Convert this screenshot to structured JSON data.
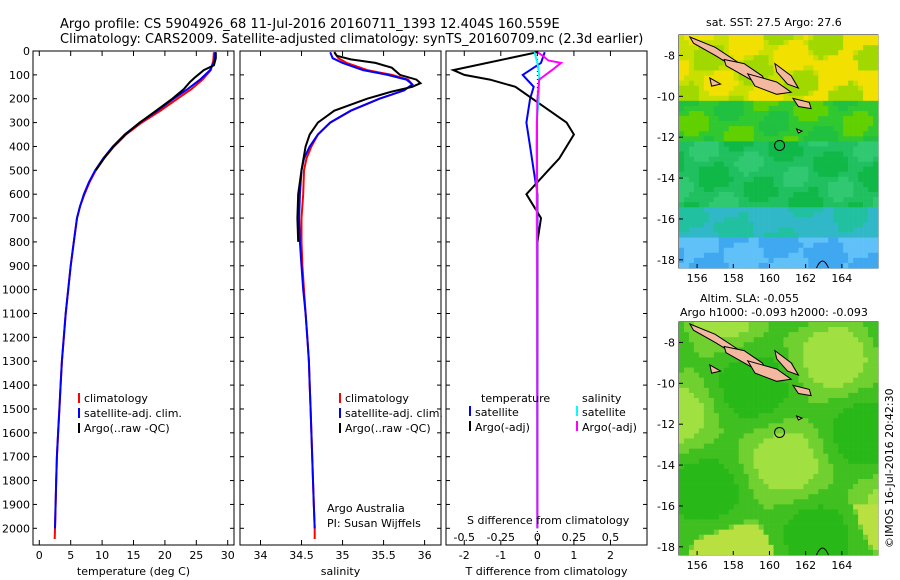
{
  "header": {
    "line1": "Argo profile: CS 5904926_68 11-Jul-2016 20160711_1393 12.404S 160.559E",
    "line2": "Climatology: CARS2009. Satellite-adjusted climatology: synTS_20160709.nc (2.3d earlier)"
  },
  "colors": {
    "climatology": "#ff0000",
    "satellite": "#0000ff",
    "argo": "#000000",
    "sal_satellite": "#00ffff",
    "sal_argo": "#ff00ff"
  },
  "annotations": {
    "argo_australia": "Argo Australia",
    "pi": "PI: Susan Wijffels",
    "diff_title": "S difference from climatology",
    "imos": "©IMOS 16-Jul-2016 20:42:30"
  },
  "map_sst": {
    "title": "sat. SST: 27.5  Argo: 27.6",
    "xticks": [
      "156",
      "158",
      "160",
      "162",
      "164"
    ],
    "yticks": [
      "-8",
      "-10",
      "-12",
      "-14",
      "-16",
      "-18"
    ]
  },
  "map_sla": {
    "title1": "Altim. SLA: -0.055",
    "title2": "Argo h1000: -0.093 h2000: -0.093",
    "xticks": [
      "156",
      "158",
      "160",
      "162",
      "164"
    ],
    "yticks": [
      "-8",
      "-10",
      "-12",
      "-14",
      "-16",
      "-18"
    ]
  },
  "chart_data": [
    {
      "type": "line",
      "xlabel": "temperature (deg C)",
      "ylabel": "",
      "xlim": [
        -1,
        31
      ],
      "ylim": [
        2070,
        0
      ],
      "xticks": [
        "0",
        "5",
        "10",
        "15",
        "20",
        "25",
        "30"
      ],
      "yticks": [
        "0",
        "100",
        "200",
        "300",
        "400",
        "500",
        "600",
        "700",
        "800",
        "900",
        "1000",
        "1100",
        "1200",
        "1300",
        "1400",
        "1500",
        "1600",
        "1700",
        "1800",
        "1900",
        "2000"
      ],
      "legend": [
        "climatology",
        "satellite-adj. clim.",
        "Argo(..raw -QC)"
      ],
      "series": [
        {
          "name": "climatology",
          "color": "#ff0000",
          "points": [
            [
              27.8,
              5
            ],
            [
              27.7,
              40
            ],
            [
              27.3,
              80
            ],
            [
              26.0,
              120
            ],
            [
              24.2,
              160
            ],
            [
              22.0,
              200
            ],
            [
              19.3,
              250
            ],
            [
              16.3,
              300
            ],
            [
              13.8,
              350
            ],
            [
              11.9,
              400
            ],
            [
              10.3,
              450
            ],
            [
              9.0,
              500
            ],
            [
              8.0,
              550
            ],
            [
              7.2,
              600
            ],
            [
              6.5,
              650
            ],
            [
              6.0,
              700
            ],
            [
              5.5,
              800
            ],
            [
              5.0,
              900
            ],
            [
              4.6,
              1000
            ],
            [
              4.2,
              1100
            ],
            [
              3.9,
              1200
            ],
            [
              3.6,
              1300
            ],
            [
              3.4,
              1400
            ],
            [
              3.2,
              1500
            ],
            [
              3.0,
              1600
            ],
            [
              2.8,
              1700
            ],
            [
              2.7,
              1800
            ],
            [
              2.6,
              1900
            ],
            [
              2.5,
              2000
            ],
            [
              2.45,
              2045
            ]
          ]
        },
        {
          "name": "satellite-adj. clim.",
          "color": "#0000ff",
          "points": [
            [
              28.0,
              5
            ],
            [
              27.9,
              40
            ],
            [
              27.2,
              80
            ],
            [
              25.6,
              120
            ],
            [
              23.6,
              160
            ],
            [
              21.4,
              200
            ],
            [
              18.8,
              250
            ],
            [
              16.0,
              300
            ],
            [
              13.6,
              350
            ],
            [
              11.7,
              400
            ],
            [
              10.2,
              450
            ],
            [
              8.9,
              500
            ],
            [
              7.9,
              550
            ],
            [
              7.1,
              600
            ],
            [
              6.5,
              650
            ],
            [
              6.0,
              700
            ],
            [
              5.5,
              800
            ],
            [
              5.0,
              900
            ],
            [
              4.6,
              1000
            ],
            [
              4.2,
              1100
            ],
            [
              3.9,
              1200
            ],
            [
              3.6,
              1300
            ],
            [
              3.4,
              1400
            ],
            [
              3.2,
              1500
            ],
            [
              3.0,
              1600
            ],
            [
              2.8,
              1700
            ],
            [
              2.7,
              1800
            ],
            [
              2.6,
              1900
            ],
            [
              2.5,
              2000
            ]
          ]
        },
        {
          "name": "Argo(..raw -QC)",
          "color": "#000000",
          "points": [
            [
              28.1,
              5
            ],
            [
              28.1,
              30
            ],
            [
              27.8,
              60
            ],
            [
              26.2,
              80
            ],
            [
              25.5,
              95
            ],
            [
              24.8,
              110
            ],
            [
              24.0,
              130
            ],
            [
              23.0,
              160
            ],
            [
              21.2,
              200
            ],
            [
              18.6,
              250
            ],
            [
              16.0,
              300
            ],
            [
              13.7,
              350
            ],
            [
              11.8,
              400
            ],
            [
              10.3,
              450
            ],
            [
              9.0,
              500
            ]
          ]
        }
      ]
    },
    {
      "type": "line",
      "xlabel": "salinity",
      "ylabel": "",
      "xlim": [
        33.75,
        36.2
      ],
      "ylim": [
        2070,
        0
      ],
      "xticks": [
        "34",
        "34.5",
        "35",
        "35.5",
        "36"
      ],
      "legend": [
        "climatology",
        "satellite-adj. clim.",
        "Argo(..raw -QC)"
      ],
      "series": [
        {
          "name": "climatology",
          "color": "#ff0000",
          "points": [
            [
              34.9,
              5
            ],
            [
              34.95,
              30
            ],
            [
              35.05,
              50
            ],
            [
              35.3,
              80
            ],
            [
              35.6,
              100
            ],
            [
              35.8,
              120
            ],
            [
              35.85,
              140
            ],
            [
              35.75,
              165
            ],
            [
              35.45,
              200
            ],
            [
              35.1,
              250
            ],
            [
              34.85,
              300
            ],
            [
              34.7,
              350
            ],
            [
              34.62,
              400
            ],
            [
              34.56,
              450
            ],
            [
              34.53,
              500
            ],
            [
              34.52,
              600
            ],
            [
              34.5,
              700
            ],
            [
              34.5,
              800
            ],
            [
              34.51,
              900
            ],
            [
              34.53,
              1000
            ],
            [
              34.55,
              1100
            ],
            [
              34.57,
              1200
            ],
            [
              34.59,
              1300
            ],
            [
              34.6,
              1400
            ],
            [
              34.61,
              1500
            ],
            [
              34.62,
              1600
            ],
            [
              34.63,
              1700
            ],
            [
              34.64,
              1800
            ],
            [
              34.65,
              1900
            ],
            [
              34.66,
              2000
            ],
            [
              34.66,
              2045
            ]
          ]
        },
        {
          "name": "satellite-adj. clim.",
          "color": "#0000ff",
          "points": [
            [
              34.85,
              5
            ],
            [
              34.88,
              30
            ],
            [
              35.0,
              50
            ],
            [
              35.25,
              80
            ],
            [
              35.55,
              100
            ],
            [
              35.78,
              120
            ],
            [
              35.85,
              140
            ],
            [
              35.75,
              165
            ],
            [
              35.45,
              200
            ],
            [
              35.1,
              250
            ],
            [
              34.85,
              300
            ],
            [
              34.7,
              350
            ],
            [
              34.6,
              400
            ],
            [
              34.53,
              450
            ],
            [
              34.5,
              500
            ],
            [
              34.48,
              600
            ],
            [
              34.47,
              700
            ],
            [
              34.48,
              800
            ],
            [
              34.5,
              900
            ],
            [
              34.52,
              1000
            ],
            [
              34.55,
              1100
            ],
            [
              34.57,
              1200
            ],
            [
              34.59,
              1300
            ],
            [
              34.6,
              1400
            ],
            [
              34.61,
              1500
            ],
            [
              34.62,
              1600
            ],
            [
              34.63,
              1700
            ],
            [
              34.64,
              1800
            ],
            [
              34.65,
              1900
            ],
            [
              34.66,
              2000
            ]
          ]
        },
        {
          "name": "Argo(..raw -QC)",
          "color": "#000000",
          "points": [
            [
              34.9,
              5
            ],
            [
              34.93,
              20
            ],
            [
              35.1,
              35
            ],
            [
              35.4,
              50
            ],
            [
              35.6,
              70
            ],
            [
              35.7,
              100
            ],
            [
              35.9,
              120
            ],
            [
              35.95,
              135
            ],
            [
              35.85,
              150
            ],
            [
              35.6,
              170
            ],
            [
              35.3,
              200
            ],
            [
              34.9,
              250
            ],
            [
              34.7,
              300
            ],
            [
              34.6,
              350
            ],
            [
              34.55,
              400
            ],
            [
              34.5,
              500
            ],
            [
              34.46,
              600
            ],
            [
              34.45,
              700
            ],
            [
              34.46,
              800
            ]
          ]
        }
      ]
    },
    {
      "type": "line",
      "xlabel": "T difference from climatology",
      "ylabel": "",
      "xlim": [
        -2.5,
        3.0
      ],
      "ylim": [
        2070,
        0
      ],
      "xticks": [
        "-2",
        "-1",
        "0",
        "1",
        "2"
      ],
      "top_ticks": [
        "-0.5",
        "-0.25",
        "0",
        "0.25",
        "0.5"
      ],
      "top_xlim": [
        -0.625,
        0.75
      ],
      "legend": [
        "temperature",
        "satellite",
        "Argo(-adj)",
        "salinity",
        "satellite",
        "Argo(-adj)"
      ],
      "series": [
        {
          "name": "satellite",
          "color": "#0000ff",
          "points": [
            [
              0.2,
              5
            ],
            [
              0.1,
              50
            ],
            [
              -0.4,
              100
            ],
            [
              -0.1,
              150
            ],
            [
              -0.2,
              200
            ],
            [
              -0.3,
              300
            ],
            [
              -0.2,
              400
            ],
            [
              -0.1,
              500
            ],
            [
              0,
              600
            ],
            [
              0,
              2000
            ]
          ]
        },
        {
          "name": "Argo(-adj)",
          "color": "#000000",
          "points": [
            [
              0.0,
              5
            ],
            [
              -2.3,
              80
            ],
            [
              -2.0,
              100
            ],
            [
              -1.3,
              120
            ],
            [
              -0.6,
              150
            ],
            [
              0.8,
              300
            ],
            [
              1.0,
              350
            ],
            [
              0.6,
              450
            ],
            [
              0.3,
              500
            ],
            [
              -0.3,
              600
            ],
            [
              0.1,
              700
            ],
            [
              0,
              800
            ]
          ]
        },
        {
          "name": "satellite",
          "color": "#00ffff",
          "points": [
            [
              -0.08,
              5
            ],
            [
              0.0,
              50
            ],
            [
              0.05,
              100
            ],
            [
              0.04,
              200
            ],
            [
              -0.02,
              300
            ],
            [
              -0.03,
              400
            ],
            [
              -0.02,
              500
            ],
            [
              -0.02,
              700
            ],
            [
              -0.01,
              1000
            ],
            [
              0,
              2000
            ]
          ]
        },
        {
          "name": "Argo(-adj)",
          "color": "#ff00ff",
          "points": [
            [
              0.0,
              5
            ],
            [
              0.15,
              20
            ],
            [
              0.3,
              40
            ],
            [
              0.65,
              50
            ],
            [
              0.4,
              80
            ],
            [
              0.05,
              120
            ],
            [
              0.0,
              200
            ],
            [
              -0.01,
              300
            ],
            [
              0,
              2000
            ]
          ]
        }
      ]
    }
  ]
}
